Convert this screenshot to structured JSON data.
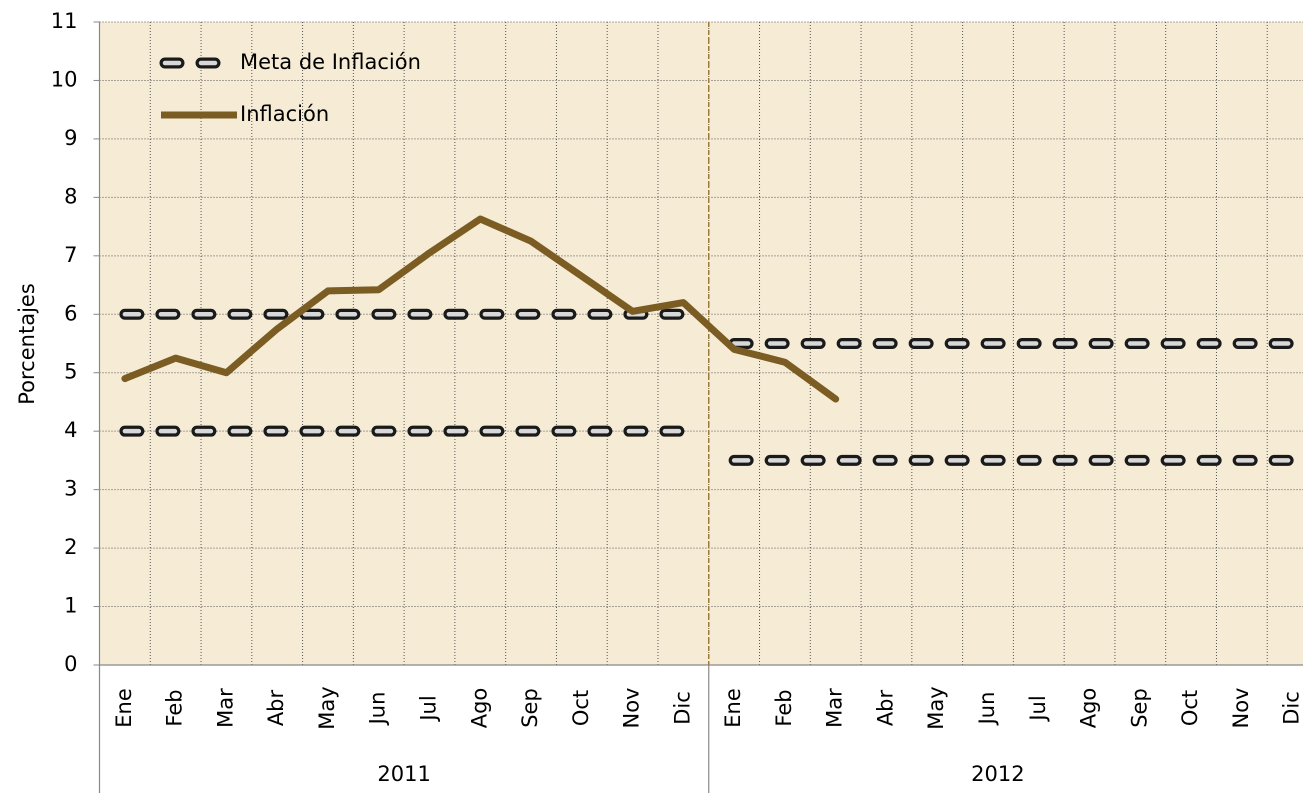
{
  "chart_data": {
    "type": "line",
    "y_label": "Porcentajes",
    "categories": [
      "Ene",
      "Feb",
      "Mar",
      "Abr",
      "May",
      "Jun",
      "Jul",
      "Ago",
      "Sep",
      "Oct",
      "Nov",
      "Dic",
      "Ene",
      "Feb",
      "Mar",
      "Abr",
      "May",
      "Jun",
      "Jul",
      "Ago",
      "Sep",
      "Oct",
      "Nov",
      "Dic"
    ],
    "groups": [
      "2011",
      "2012"
    ],
    "series": [
      {
        "name": "Meta de Inflación",
        "color": "#1a1a1a",
        "dashed": true,
        "values": [
          6,
          6,
          6,
          6,
          6,
          6,
          6,
          6,
          6,
          6,
          6,
          6,
          5.5,
          5.5,
          5.5,
          5.5,
          5.5,
          5.5,
          5.5,
          5.5,
          5.5,
          5.5,
          5.5,
          5.5
        ],
        "lower": [
          4,
          4,
          4,
          4,
          4,
          4,
          4,
          4,
          4,
          4,
          4,
          4,
          3.5,
          3.5,
          3.5,
          3.5,
          3.5,
          3.5,
          3.5,
          3.5,
          3.5,
          3.5,
          3.5,
          3.5
        ]
      },
      {
        "name": "Inflación",
        "color": "#7b5c23",
        "dashed": false,
        "values": [
          4.9,
          5.25,
          5.0,
          5.75,
          6.4,
          6.42,
          7.05,
          7.63,
          7.25,
          6.65,
          6.05,
          6.2,
          5.4,
          5.18,
          4.55,
          null,
          null,
          null,
          null,
          null,
          null,
          null,
          null,
          null
        ]
      }
    ],
    "ylim": [
      0,
      11
    ],
    "yticks": [
      0,
      1,
      2,
      3,
      4,
      5,
      6,
      7,
      8,
      9,
      10,
      11
    ],
    "grid": true,
    "legend": "top-left",
    "background": "#f6ecd6"
  }
}
